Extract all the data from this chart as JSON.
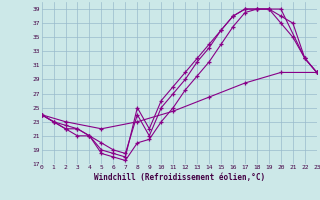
{
  "xlabel": "Windchill (Refroidissement éolien,°C)",
  "background_color": "#cce8e8",
  "grid_color": "#99bbcc",
  "line_color": "#880088",
  "xlim": [
    0,
    23
  ],
  "ylim": [
    17,
    40
  ],
  "xticks": [
    0,
    1,
    2,
    3,
    4,
    5,
    6,
    7,
    8,
    9,
    10,
    11,
    12,
    13,
    14,
    15,
    16,
    17,
    18,
    19,
    20,
    21,
    22,
    23
  ],
  "yticks": [
    17,
    19,
    21,
    23,
    25,
    27,
    29,
    31,
    33,
    35,
    37,
    39
  ],
  "series": [
    {
      "x": [
        0,
        1,
        2,
        3,
        4,
        5,
        6,
        7,
        8,
        9,
        10,
        11,
        12,
        13,
        14,
        15,
        16,
        17,
        18,
        19,
        20,
        22,
        23
      ],
      "y": [
        24,
        23,
        22,
        22,
        21,
        19,
        18.5,
        18,
        25,
        22,
        26,
        28,
        30,
        32,
        34,
        36,
        38,
        39,
        39,
        39,
        39,
        32,
        30
      ]
    },
    {
      "x": [
        0,
        1,
        2,
        3,
        4,
        5,
        6,
        7,
        8,
        9,
        10,
        11,
        12,
        13,
        14,
        15,
        16,
        17,
        18,
        19,
        20,
        21,
        22,
        23
      ],
      "y": [
        24,
        23,
        22.5,
        22,
        21,
        20,
        19,
        18.5,
        24,
        21,
        25,
        27,
        29,
        31.5,
        33.5,
        36,
        38,
        39,
        39,
        39,
        37,
        35,
        32,
        30
      ]
    },
    {
      "x": [
        0,
        1,
        2,
        3,
        4,
        5,
        6,
        7,
        8,
        9,
        10,
        11,
        12,
        13,
        14,
        15,
        16,
        17,
        18,
        19,
        20,
        21,
        22,
        23
      ],
      "y": [
        24,
        23,
        22,
        21,
        21,
        18.5,
        18,
        17.5,
        20,
        20.5,
        23,
        25,
        27.5,
        29.5,
        31.5,
        34,
        36.5,
        38.5,
        39,
        39,
        38,
        37,
        32,
        30
      ]
    },
    {
      "x": [
        0,
        2,
        5,
        8,
        11,
        14,
        17,
        20,
        23
      ],
      "y": [
        24,
        23,
        22,
        23,
        24.5,
        26.5,
        28.5,
        30,
        30
      ]
    }
  ]
}
